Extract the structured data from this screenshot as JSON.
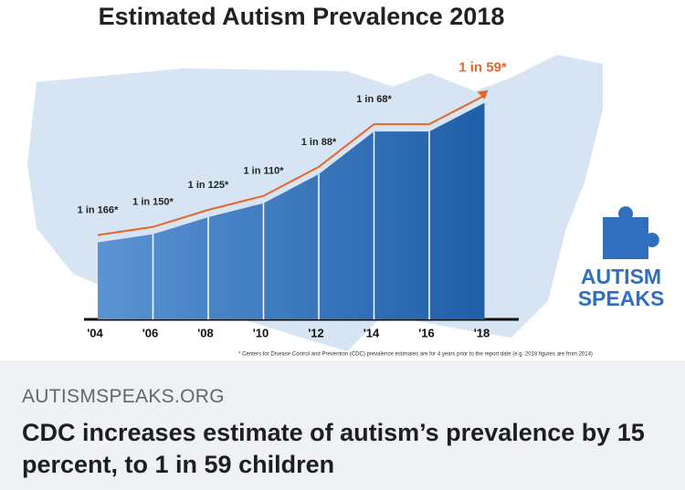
{
  "chart_data": {
    "type": "area",
    "title": "Estimated Autism Prevalence 2018",
    "categories": [
      "'04",
      "'06",
      "'08",
      "'10",
      "'12",
      "'14",
      "'16",
      "'18"
    ],
    "values": [
      166,
      150,
      125,
      110,
      88,
      68,
      68,
      59
    ],
    "value_labels": [
      "1 in 166*",
      "1 in 150*",
      "1 in 125*",
      "1 in 110*",
      "1 in 88*",
      "1 in 68*",
      null,
      "1 in 59*"
    ],
    "color": "#1f5fa8",
    "line_color": "#e2672a",
    "note": "* Centers for Disease Control and Prevention (CDC) prevalence estimates are for 4 years prior to the report date (e.g. 2018 figures are from 2014)"
  },
  "logo": {
    "line1": "AUTISM",
    "line2": "SPEAKS"
  },
  "link": {
    "domain": "AUTISMSPEAKS.ORG",
    "headline": "CDC increases estimate of autism’s prevalence by 15 percent, to 1 in 59 children"
  }
}
